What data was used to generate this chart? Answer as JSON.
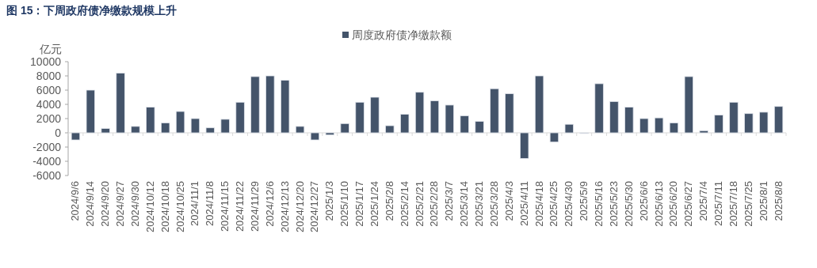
{
  "chart_data": {
    "type": "bar",
    "title": "图  15：下周政府债净缴款规模上升",
    "ylabel": "亿元",
    "categories": [
      "2024/9/6",
      "2024/9/14",
      "2024/9/20",
      "2024/9/27",
      "2024/9/30",
      "2024/10/12",
      "2024/10/18",
      "2024/10/25",
      "2024/11/1",
      "2024/11/8",
      "2024/11/15",
      "2024/11/22",
      "2024/11/29",
      "2024/12/6",
      "2024/12/13",
      "2024/12/20",
      "2024/12/27",
      "2025/1/3",
      "2025/1/10",
      "2025/1/17",
      "2025/1/24",
      "2025/2/8",
      "2025/2/14",
      "2025/2/21",
      "2025/2/28",
      "2025/3/7",
      "2025/3/14",
      "2025/3/21",
      "2025/3/28",
      "2025/4/3",
      "2025/4/11",
      "2025/4/18",
      "2025/4/25",
      "2025/4/30",
      "2025/5/9",
      "2025/5/16",
      "2025/5/23",
      "2025/5/30",
      "2025/6/6",
      "2025/6/13",
      "2025/6/20",
      "2025/6/27",
      "2025/7/4",
      "2025/7/11",
      "2025/7/18",
      "2025/7/25",
      "2025/8/1",
      "2025/8/8"
    ],
    "series": [
      {
        "name": "周度政府债净缴款额",
        "color": "#44546a",
        "values": [
          -1000,
          6000,
          600,
          8400,
          900,
          3600,
          1400,
          3000,
          2000,
          700,
          1900,
          4300,
          7900,
          8000,
          7400,
          900,
          -1000,
          -300,
          1300,
          4300,
          5000,
          1000,
          2600,
          5700,
          4500,
          3900,
          2400,
          1600,
          6200,
          5500,
          -3600,
          8000,
          -1300,
          1200,
          -100,
          6900,
          4400,
          3600,
          2000,
          2100,
          1400,
          7900,
          300,
          2500,
          4300,
          2700,
          2900,
          3700
        ]
      }
    ],
    "ylim": [
      -6000,
      10000
    ],
    "yticks": [
      10000,
      8000,
      6000,
      4000,
      2000,
      0,
      -2000,
      -4000,
      -6000
    ],
    "ref_lines": [
      {
        "axis": "y",
        "value": 0,
        "color": "#d9d9d9"
      }
    ],
    "legend": "top",
    "grid": false
  }
}
